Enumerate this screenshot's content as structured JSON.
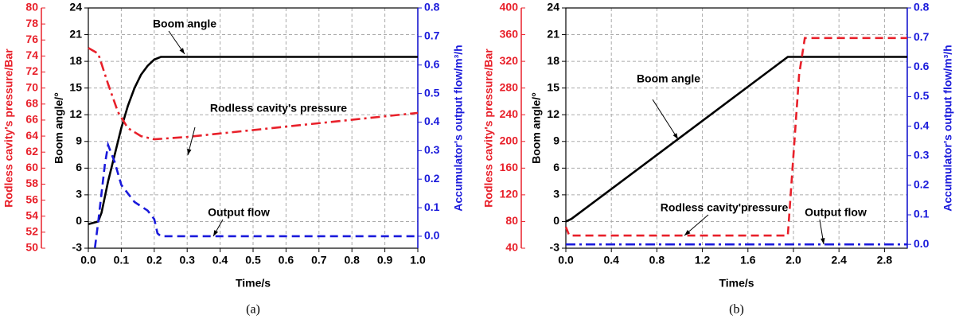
{
  "chart_data": [
    {
      "type": "line",
      "caption": "(a)",
      "xlabel": "Time/s",
      "ylabel": "Boom angle/°",
      "y2label": "Accumulator's output flow/m³/h",
      "y3label": "Rodless cavity's pressure/Bar",
      "xlim": [
        0,
        1.0
      ],
      "xticks": [
        {
          "value": 0,
          "label": "0.0"
        },
        0.1,
        0.2,
        0.3,
        0.4,
        0.5,
        0.6,
        0.7,
        0.8,
        0.9,
        {
          "value": 1,
          "label": "1.0"
        }
      ],
      "ylim": [
        -3,
        24
      ],
      "yticks": [
        -3,
        0,
        3,
        6,
        9,
        12,
        15,
        18,
        21,
        24
      ],
      "y2lim": [
        -0.042,
        0.8
      ],
      "y2ticks": [
        {
          "value": 0,
          "label": "0.0"
        },
        0.1,
        0.2,
        0.3,
        0.4,
        0.5,
        0.6,
        0.7,
        0.8
      ],
      "y3lim": [
        50,
        80
      ],
      "y3ticks": [
        50,
        52,
        54,
        56,
        58,
        60,
        62,
        64,
        66,
        68,
        70,
        72,
        74,
        76,
        78,
        80
      ],
      "grid": true,
      "annotations": [
        "Boom angle",
        "Rodless cavity's pressure",
        "Output flow"
      ],
      "series": [
        {
          "name": "Boom angle",
          "color": "#000000",
          "dash": "solid",
          "axis": "y",
          "x": [
            0,
            0.03,
            0.04,
            0.06,
            0.08,
            0.1,
            0.12,
            0.14,
            0.16,
            0.18,
            0.2,
            0.22,
            1.0
          ],
          "values": [
            -0.3,
            0,
            1,
            4.5,
            7.5,
            10.5,
            13,
            15,
            16.5,
            17.5,
            18.2,
            18.5,
            18.5
          ]
        },
        {
          "name": "Rodless cavity's pressure",
          "color": "#e8202a",
          "dash": "dashdot",
          "axis": "y3",
          "x": [
            0,
            0.03,
            0.06,
            0.09,
            0.12,
            0.16,
            0.2,
            0.3,
            1.0
          ],
          "values": [
            75,
            74.3,
            70.5,
            67,
            65,
            64,
            63.6,
            63.9,
            66.9
          ]
        },
        {
          "name": "Output flow",
          "color": "#1a1adb",
          "dash": "dash",
          "axis": "y2",
          "x": [
            0.02,
            0.03,
            0.05,
            0.06,
            0.08,
            0.1,
            0.14,
            0.18,
            0.2,
            0.21,
            0.22,
            1.0
          ],
          "values": [
            -0.04,
            0.05,
            0.25,
            0.32,
            0.26,
            0.18,
            0.12,
            0.09,
            0.06,
            0.01,
            0,
            0
          ]
        }
      ]
    },
    {
      "type": "line",
      "caption": "(b)",
      "xlabel": "Time/s",
      "ylabel": "Boom angle/°",
      "y2label": "Accumulator's output flow/m³/h",
      "y3label": "Rodless cavity's pressure/Bar",
      "xlim": [
        0,
        3.0
      ],
      "xticks": [
        {
          "value": 0,
          "label": "0.0"
        },
        0.4,
        0.8,
        1.2,
        1.6,
        {
          "value": 2,
          "label": "2.0"
        },
        2.4,
        2.8
      ],
      "ylim": [
        -3,
        24
      ],
      "yticks": [
        -3,
        0,
        3,
        6,
        9,
        12,
        15,
        18,
        21,
        24
      ],
      "y2lim": [
        -0.013,
        0.8
      ],
      "y2ticks": [
        {
          "value": 0,
          "label": "0.0"
        },
        0.1,
        0.2,
        0.3,
        0.4,
        0.5,
        0.6,
        0.7,
        0.8
      ],
      "y3lim": [
        40,
        400
      ],
      "y3ticks": [
        40,
        80,
        120,
        160,
        200,
        240,
        280,
        320,
        360,
        400
      ],
      "grid": true,
      "annotations": [
        "Boom angle",
        "Rodless cavity'pressure",
        "Output flow"
      ],
      "series": [
        {
          "name": "Boom angle",
          "color": "#000000",
          "dash": "solid",
          "axis": "y",
          "x": [
            0,
            0.05,
            1.95,
            3.0
          ],
          "values": [
            0,
            0.3,
            18.5,
            18.5
          ]
        },
        {
          "name": "Rodless cavity'pressure",
          "color": "#e8202a",
          "dash": "dash",
          "axis": "y3",
          "x": [
            0,
            0.03,
            1.95,
            2.05,
            2.1,
            3.0
          ],
          "values": [
            72,
            59,
            59,
            300,
            355,
            355
          ]
        },
        {
          "name": "Output flow",
          "color": "#1a1adb",
          "dash": "dashdot",
          "axis": "y2",
          "x": [
            0,
            3.0
          ],
          "values": [
            0,
            0
          ]
        }
      ]
    }
  ]
}
